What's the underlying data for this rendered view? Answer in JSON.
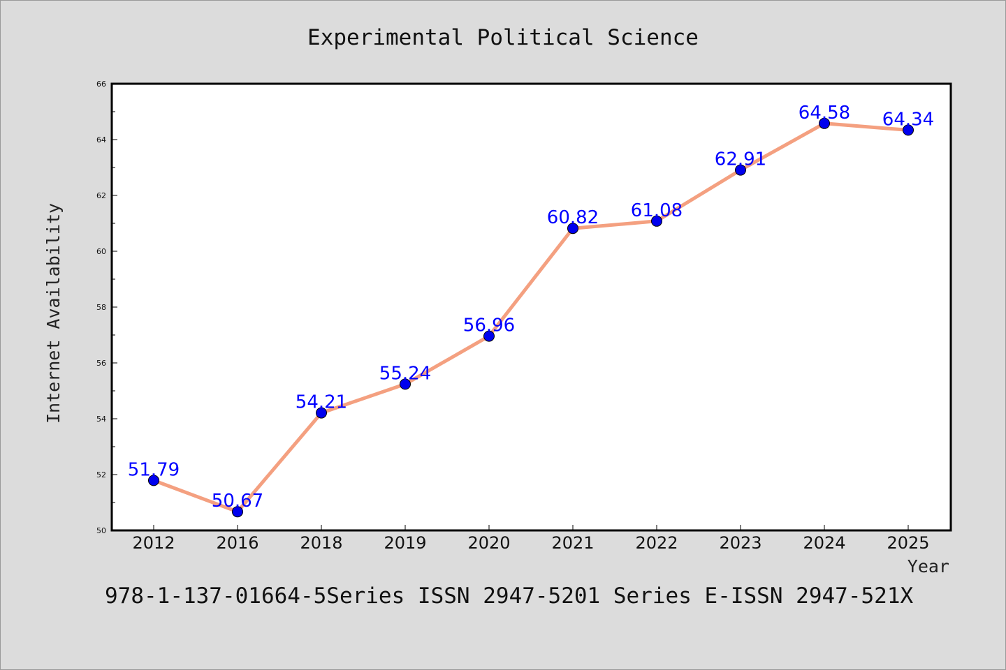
{
  "chart_data": {
    "type": "line",
    "title": "Experimental Political Science",
    "xlabel": "Year",
    "ylabel": "Internet Availability",
    "categories": [
      "2012",
      "2016",
      "2018",
      "2019",
      "2020",
      "2021",
      "2022",
      "2023",
      "2024",
      "2025"
    ],
    "series": [
      {
        "values": [
          51.79,
          50.67,
          54.21,
          55.24,
          56.96,
          60.82,
          61.08,
          62.91,
          64.58,
          64.34
        ],
        "data_labels": [
          "51.79",
          "50.67",
          "54.21",
          "55.24",
          "56.96",
          "60.82",
          "61.08",
          "62.91",
          "64.58",
          "64.34"
        ],
        "line_color": "#f4a080",
        "marker_color": "#0000ee"
      }
    ],
    "ylim": [
      50,
      66
    ],
    "yticks": [
      "50",
      "52",
      "54",
      "56",
      "58",
      "60",
      "62",
      "64",
      "66"
    ],
    "grid": false,
    "legend": "none"
  },
  "footer": "978-1-137-01664-5Series ISSN 2947-5201 Series E-ISSN 2947-521X",
  "colors": {
    "background": "#dcdcdc",
    "plot_background": "#ffffff",
    "line": "#f4a080",
    "marker": "#0000ee",
    "data_label": "#0000ff"
  }
}
